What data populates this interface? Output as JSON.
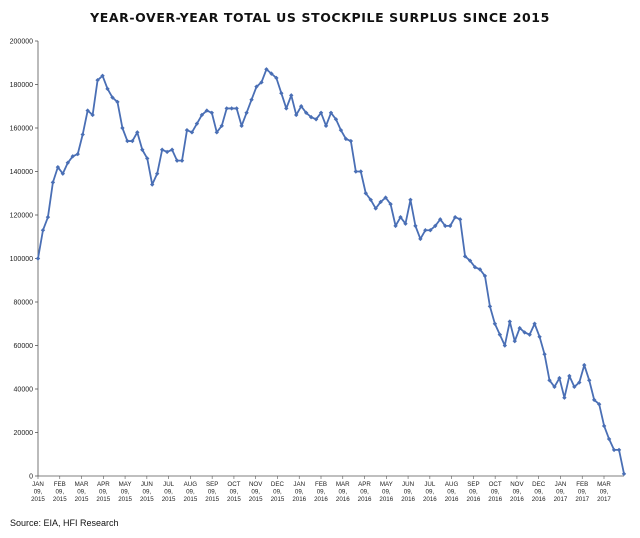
{
  "chart_data": {
    "type": "line",
    "title": "YEAR-OVER-YEAR TOTAL US STOCKPILE SURPLUS SINCE 2015",
    "xlabel": "",
    "ylabel": "",
    "ylim": [
      0,
      200000
    ],
    "yticks": [
      "0",
      "20000",
      "40000",
      "60000",
      "80000",
      "100000",
      "120000",
      "140000",
      "160000",
      "180000",
      "200000"
    ],
    "grid": false,
    "legend": "none",
    "line_color": "#4a6fb5",
    "xtick_labels": [
      [
        "JAN",
        "09,",
        "2015"
      ],
      [
        "FEB",
        "09,",
        "2015"
      ],
      [
        "MAR",
        "09,",
        "2015"
      ],
      [
        "APR",
        "09,",
        "2015"
      ],
      [
        "MAY",
        "09,",
        "2015"
      ],
      [
        "JUN",
        "09,",
        "2015"
      ],
      [
        "JUL",
        "09,",
        "2015"
      ],
      [
        "AUG",
        "09,",
        "2015"
      ],
      [
        "SEP",
        "09,",
        "2015"
      ],
      [
        "OCT",
        "09,",
        "2015"
      ],
      [
        "NOV",
        "09,",
        "2015"
      ],
      [
        "DEC",
        "09,",
        "2015"
      ],
      [
        "JAN",
        "09,",
        "2016"
      ],
      [
        "FEB",
        "09,",
        "2016"
      ],
      [
        "MAR",
        "09,",
        "2016"
      ],
      [
        "APR",
        "09,",
        "2016"
      ],
      [
        "MAY",
        "09,",
        "2016"
      ],
      [
        "JUN",
        "09,",
        "2016"
      ],
      [
        "JUL",
        "09,",
        "2016"
      ],
      [
        "AUG",
        "09,",
        "2016"
      ],
      [
        "SEP",
        "09,",
        "2016"
      ],
      [
        "OCT",
        "09,",
        "2016"
      ],
      [
        "NOV",
        "09,",
        "2016"
      ],
      [
        "DEC",
        "09,",
        "2016"
      ],
      [
        "JAN",
        "09,",
        "2017"
      ],
      [
        "FEB",
        "09,",
        "2017"
      ],
      [
        "MAR",
        "09,",
        "2017"
      ]
    ],
    "series": [
      {
        "values": [
          100000,
          113000,
          119000,
          135000,
          142000,
          139000,
          144000,
          147000,
          148000,
          157000,
          168000,
          166000,
          182000,
          184000,
          178000,
          174000,
          172000,
          160000,
          154000,
          154000,
          158000,
          150000,
          146000,
          134000,
          139000,
          150000,
          149000,
          150000,
          145000,
          145000,
          159000,
          158000,
          162000,
          166000,
          168000,
          167000,
          158000,
          161000,
          169000,
          169000,
          169000,
          161000,
          167000,
          173000,
          179000,
          181000,
          187000,
          185000,
          183000,
          176000,
          169000,
          175000,
          166000,
          170000,
          167000,
          165000,
          164000,
          167000,
          161000,
          167000,
          164000,
          159000,
          155000,
          154000,
          140000,
          140000,
          130000,
          127000,
          123000,
          126000,
          128000,
          125000,
          115000,
          119000,
          116000,
          127000,
          115000,
          109000,
          113000,
          113000,
          115000,
          118000,
          115000,
          115000,
          119000,
          118000,
          101000,
          99000,
          96000,
          95000,
          92000,
          78000,
          70000,
          65000,
          60000,
          71000,
          62000,
          68000,
          66000,
          65000,
          70000,
          64000,
          56000,
          44000,
          41000,
          45000,
          36000,
          46000,
          41000,
          43000,
          51000,
          44000,
          35000,
          33000,
          23000,
          17000,
          12000,
          12000,
          1000
        ]
      }
    ]
  },
  "footer": {
    "source": "Source: EIA, HFI Research"
  }
}
